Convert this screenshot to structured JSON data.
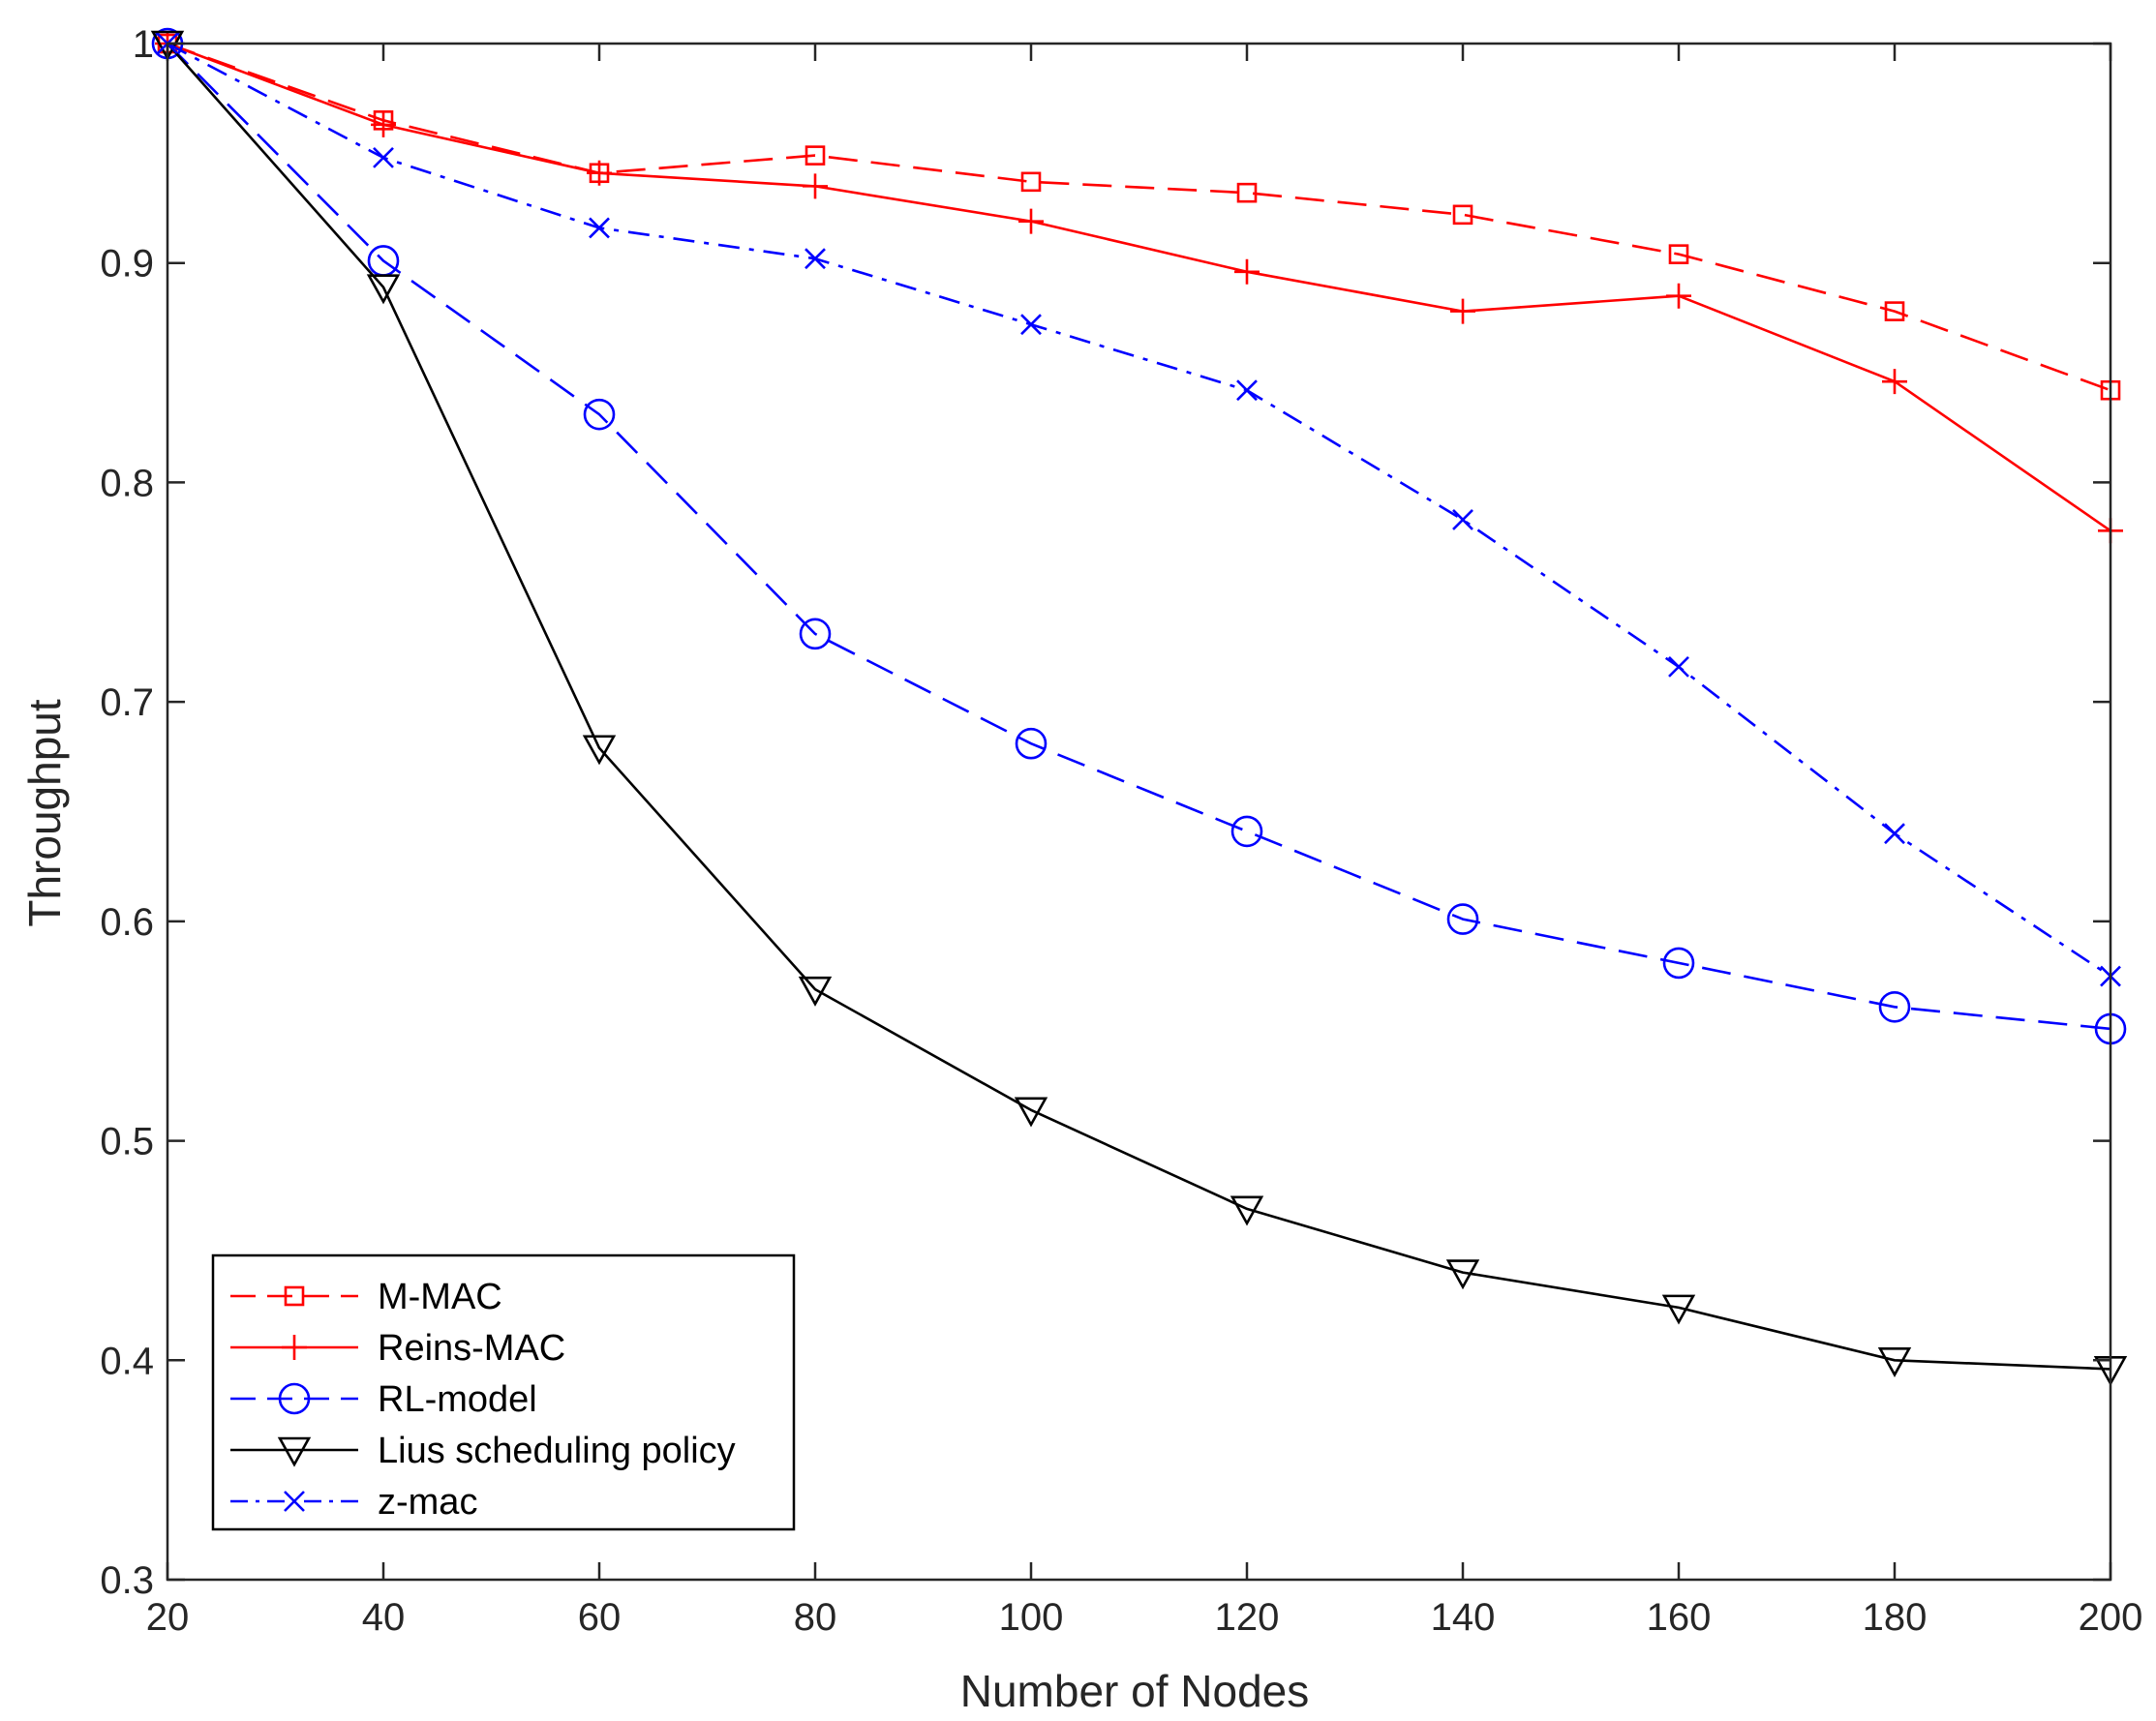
{
  "chart_data": {
    "type": "line",
    "title": "",
    "xlabel": "Number of Nodes",
    "ylabel": "Throughput",
    "x": [
      20,
      40,
      60,
      80,
      100,
      120,
      140,
      160,
      180,
      200
    ],
    "xlim": [
      20,
      200
    ],
    "ylim": [
      0.3,
      1.0
    ],
    "xticks": [
      "20",
      "40",
      "60",
      "80",
      "100",
      "120",
      "140",
      "160",
      "180",
      "200"
    ],
    "yticks": [
      "0.3",
      "0.4",
      "0.5",
      "0.6",
      "0.7",
      "0.8",
      "0.9",
      "1"
    ],
    "grid": false,
    "legend_position": "bottom-left",
    "series": [
      {
        "name": "M-MAC",
        "color": "#ff0000",
        "line_style": "dashed",
        "marker": "square",
        "values": [
          1.0,
          0.965,
          0.941,
          0.949,
          0.937,
          0.932,
          0.922,
          0.904,
          0.878,
          0.842
        ]
      },
      {
        "name": "Reins-MAC",
        "color": "#ff0000",
        "line_style": "solid",
        "marker": "plus",
        "values": [
          1.0,
          0.963,
          0.941,
          0.935,
          0.919,
          0.896,
          0.878,
          0.885,
          0.846,
          0.778
        ]
      },
      {
        "name": "RL-model",
        "color": "#0000ff",
        "line_style": "dashed",
        "marker": "circle",
        "values": [
          1.0,
          0.901,
          0.831,
          0.731,
          0.681,
          0.641,
          0.601,
          0.581,
          0.561,
          0.551
        ]
      },
      {
        "name": "Lius scheduling policy",
        "color": "#000000",
        "line_style": "solid",
        "marker": "triangle-down",
        "values": [
          1.0,
          0.889,
          0.679,
          0.569,
          0.514,
          0.469,
          0.44,
          0.424,
          0.4,
          0.396
        ]
      },
      {
        "name": "z-mac",
        "color": "#0000ff",
        "line_style": "dashdot",
        "marker": "x",
        "values": [
          1.0,
          0.948,
          0.916,
          0.902,
          0.872,
          0.842,
          0.783,
          0.716,
          0.64,
          0.575
        ]
      }
    ]
  }
}
